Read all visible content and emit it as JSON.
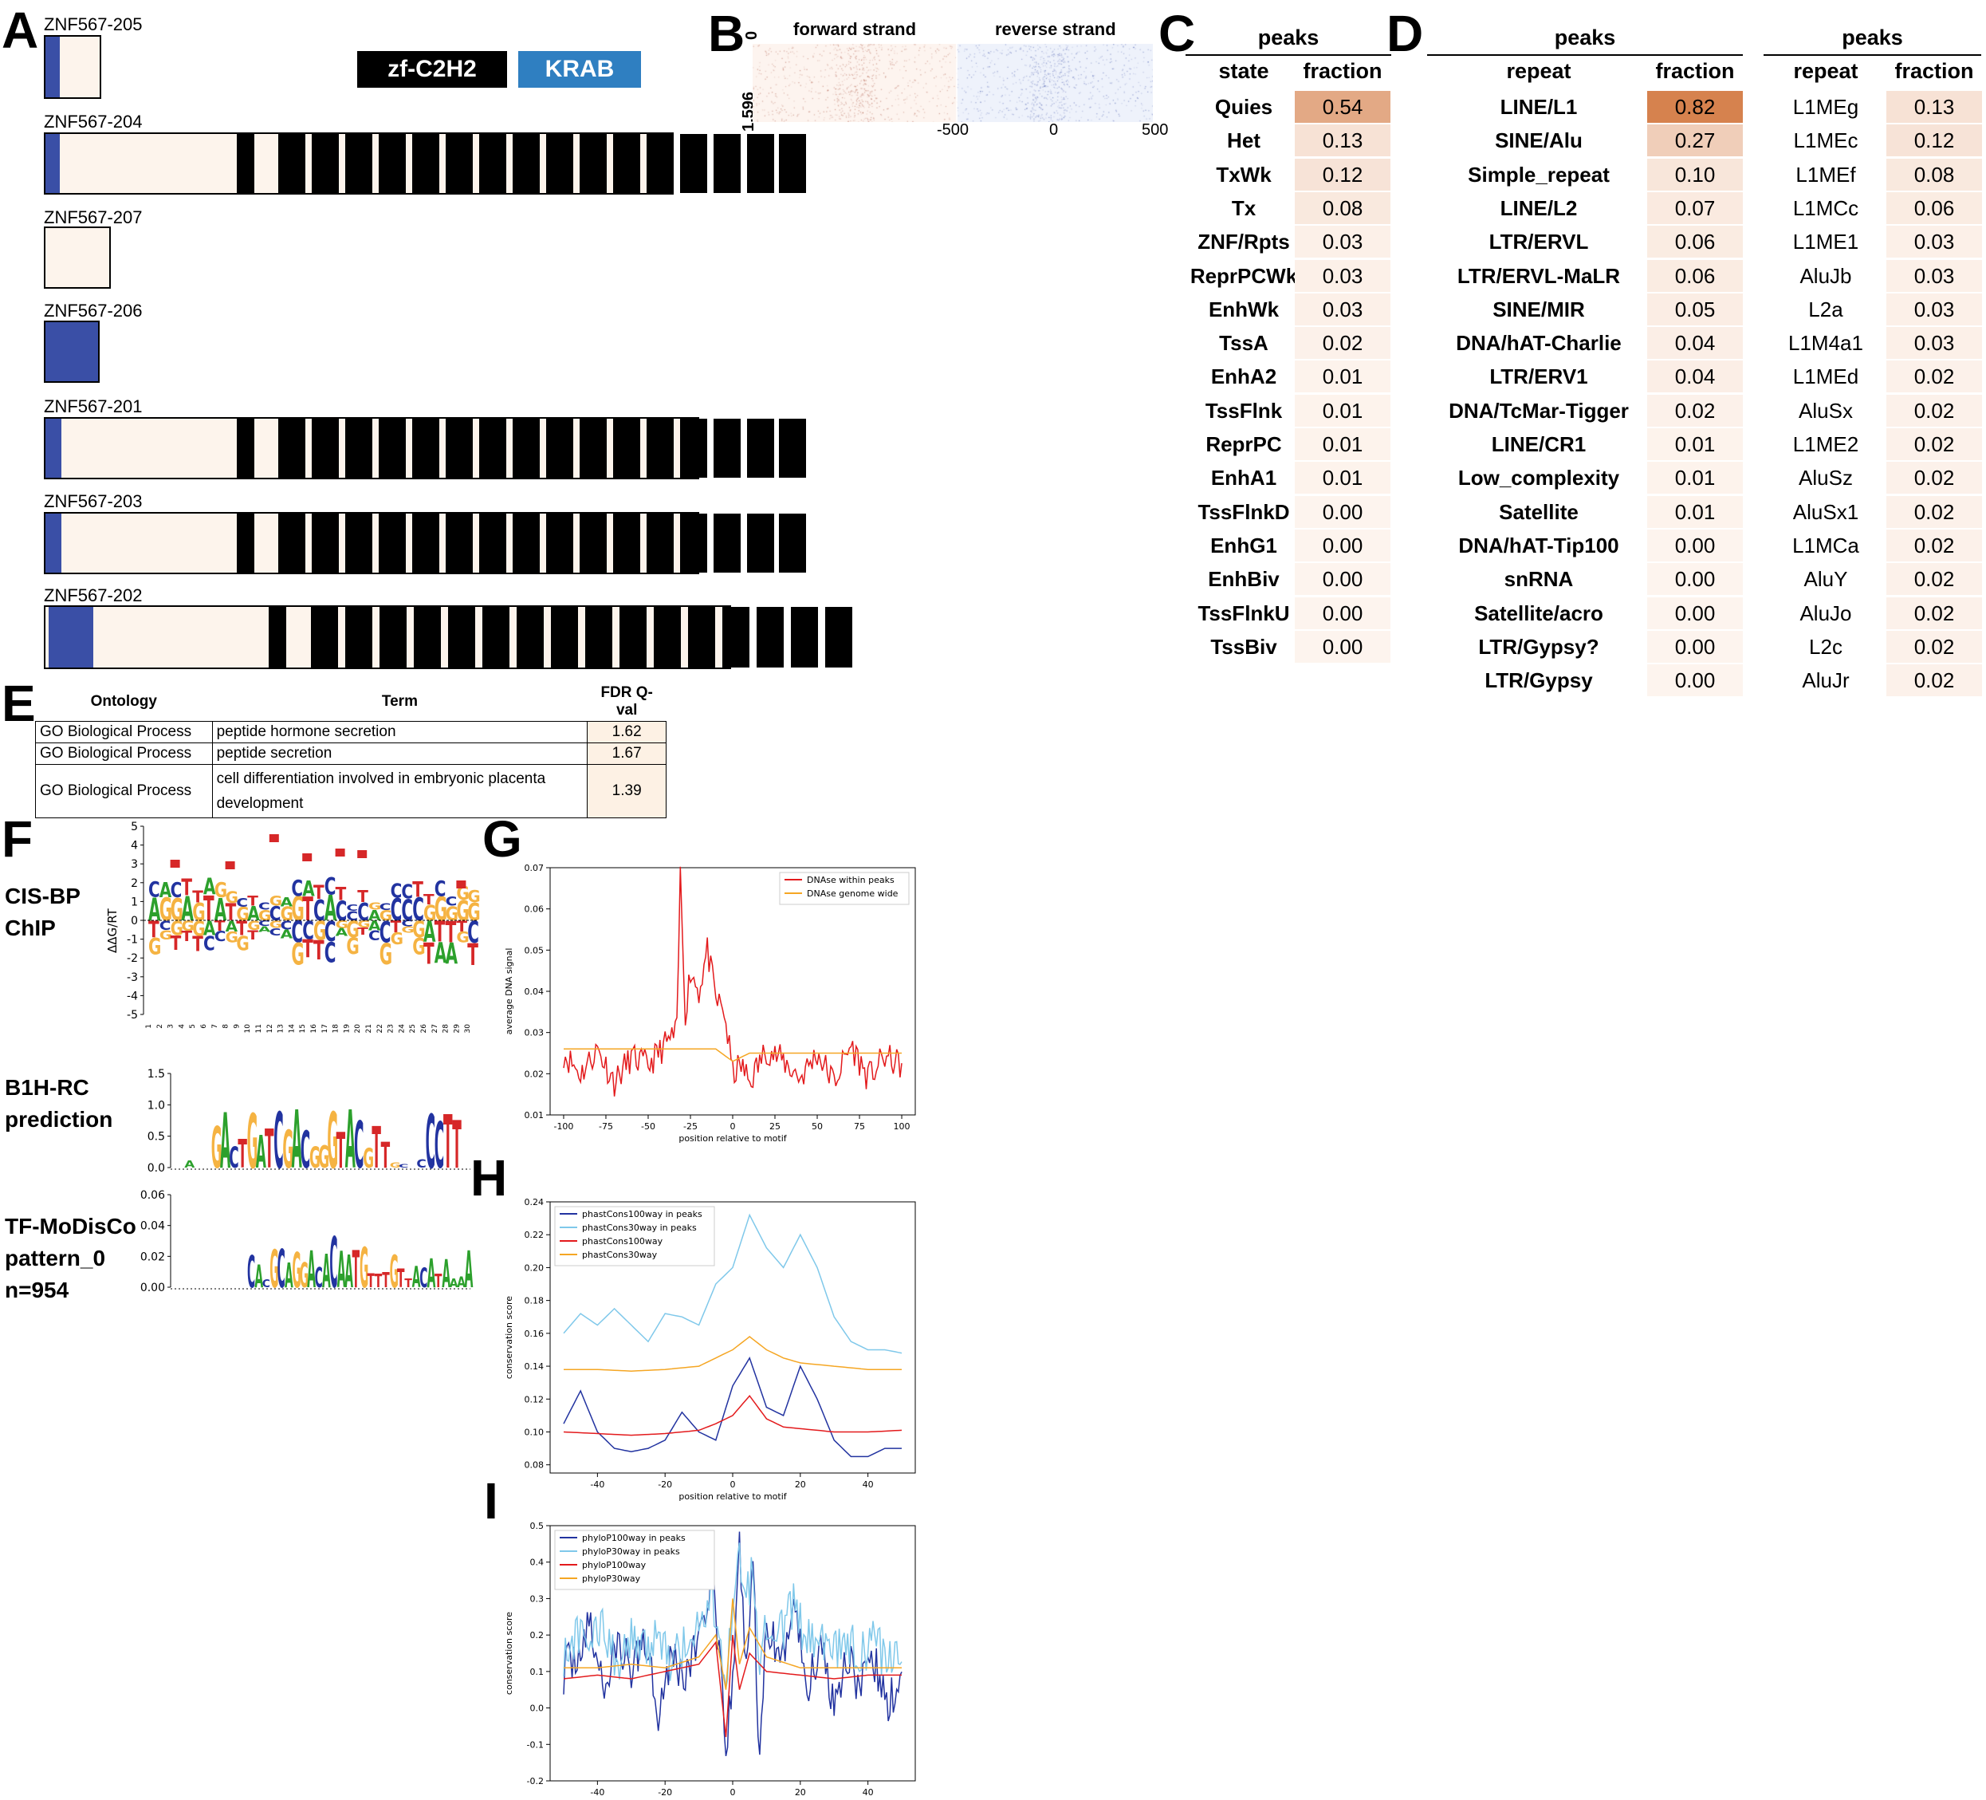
{
  "panels": {
    "A": "A",
    "B": "B",
    "C": "C",
    "D": "D",
    "E": "E",
    "F": "F",
    "G": "G",
    "H": "H",
    "I": "I"
  },
  "panelA": {
    "legend": [
      {
        "label": "zf-C2H2",
        "color": "#000000"
      },
      {
        "label": "KRAB",
        "color": "#2f7fc1"
      }
    ],
    "isoforms": [
      {
        "name": "ZNF567-205"
      },
      {
        "name": "ZNF567-204"
      },
      {
        "name": "ZNF567-207"
      },
      {
        "name": "ZNF567-206"
      },
      {
        "name": "ZNF567-201"
      },
      {
        "name": "ZNF567-203"
      },
      {
        "name": "ZNF567-202"
      }
    ]
  },
  "panelB": {
    "forward_label": "forward strand",
    "reverse_label": "reverse strand",
    "y_top": "0",
    "y_bottom": "1,596",
    "ticks": [
      "-500",
      "0",
      "500"
    ]
  },
  "panelC": {
    "group_header": "peaks",
    "col1": "state",
    "col2": "fraction",
    "rows": [
      {
        "state": "Quies",
        "fraction": "0.54"
      },
      {
        "state": "Het",
        "fraction": "0.13"
      },
      {
        "state": "TxWk",
        "fraction": "0.12"
      },
      {
        "state": "Tx",
        "fraction": "0.08"
      },
      {
        "state": "ZNF/Rpts",
        "fraction": "0.03"
      },
      {
        "state": "ReprPCWk",
        "fraction": "0.03"
      },
      {
        "state": "EnhWk",
        "fraction": "0.03"
      },
      {
        "state": "TssA",
        "fraction": "0.02"
      },
      {
        "state": "EnhA2",
        "fraction": "0.01"
      },
      {
        "state": "TssFlnk",
        "fraction": "0.01"
      },
      {
        "state": "ReprPC",
        "fraction": "0.01"
      },
      {
        "state": "EnhA1",
        "fraction": "0.01"
      },
      {
        "state": "TssFlnkD",
        "fraction": "0.00"
      },
      {
        "state": "EnhG1",
        "fraction": "0.00"
      },
      {
        "state": "EnhBiv",
        "fraction": "0.00"
      },
      {
        "state": "TssFlnkU",
        "fraction": "0.00"
      },
      {
        "state": "TssBiv",
        "fraction": "0.00"
      }
    ]
  },
  "panelD": {
    "left": {
      "group_header": "peaks",
      "col1": "repeat",
      "col2": "fraction",
      "rows": [
        {
          "repeat": "LINE/L1",
          "fraction": "0.82"
        },
        {
          "repeat": "SINE/Alu",
          "fraction": "0.27"
        },
        {
          "repeat": "Simple_repeat",
          "fraction": "0.10"
        },
        {
          "repeat": "LINE/L2",
          "fraction": "0.07"
        },
        {
          "repeat": "LTR/ERVL",
          "fraction": "0.06"
        },
        {
          "repeat": "LTR/ERVL-MaLR",
          "fraction": "0.06"
        },
        {
          "repeat": "SINE/MIR",
          "fraction": "0.05"
        },
        {
          "repeat": "DNA/hAT-Charlie",
          "fraction": "0.04"
        },
        {
          "repeat": "LTR/ERV1",
          "fraction": "0.04"
        },
        {
          "repeat": "DNA/TcMar-Tigger",
          "fraction": "0.02"
        },
        {
          "repeat": "LINE/CR1",
          "fraction": "0.01"
        },
        {
          "repeat": "Low_complexity",
          "fraction": "0.01"
        },
        {
          "repeat": "Satellite",
          "fraction": "0.01"
        },
        {
          "repeat": "DNA/hAT-Tip100",
          "fraction": "0.00"
        },
        {
          "repeat": "snRNA",
          "fraction": "0.00"
        },
        {
          "repeat": "Satellite/acro",
          "fraction": "0.00"
        },
        {
          "repeat": "LTR/Gypsy?",
          "fraction": "0.00"
        },
        {
          "repeat": "LTR/Gypsy",
          "fraction": "0.00"
        }
      ]
    },
    "right": {
      "group_header": "peaks",
      "col1": "repeat",
      "col2": "fraction",
      "rows": [
        {
          "repeat": "L1MEg",
          "fraction": "0.13"
        },
        {
          "repeat": "L1MEc",
          "fraction": "0.12"
        },
        {
          "repeat": "L1MEf",
          "fraction": "0.08"
        },
        {
          "repeat": "L1MCc",
          "fraction": "0.06"
        },
        {
          "repeat": "L1ME1",
          "fraction": "0.03"
        },
        {
          "repeat": "AluJb",
          "fraction": "0.03"
        },
        {
          "repeat": "L2a",
          "fraction": "0.03"
        },
        {
          "repeat": "L1M4a1",
          "fraction": "0.03"
        },
        {
          "repeat": "L1MEd",
          "fraction": "0.02"
        },
        {
          "repeat": "AluSx",
          "fraction": "0.02"
        },
        {
          "repeat": "L1ME2",
          "fraction": "0.02"
        },
        {
          "repeat": "AluSz",
          "fraction": "0.02"
        },
        {
          "repeat": "AluSx1",
          "fraction": "0.02"
        },
        {
          "repeat": "L1MCa",
          "fraction": "0.02"
        },
        {
          "repeat": "AluY",
          "fraction": "0.02"
        },
        {
          "repeat": "AluJo",
          "fraction": "0.02"
        },
        {
          "repeat": "L2c",
          "fraction": "0.02"
        },
        {
          "repeat": "AluJr",
          "fraction": "0.02"
        }
      ]
    }
  },
  "panelE": {
    "headers": [
      "Ontology",
      "Term",
      "FDR Q-val"
    ],
    "rows": [
      {
        "ontology": "GO Biological Process",
        "term": "peptide hormone secretion",
        "q": "1.62"
      },
      {
        "ontology": "GO Biological Process",
        "term": "peptide secretion",
        "q": "1.67"
      },
      {
        "ontology": "GO Biological Process",
        "term": "cell differentiation involved in embryonic placenta development",
        "q": "1.39"
      }
    ]
  },
  "panelF": {
    "labels": [
      {
        "line1": "CIS-BP",
        "line2": "ChIP",
        "line3": ""
      },
      {
        "line1": "B1H-RC",
        "line2": "prediction",
        "line3": ""
      },
      {
        "line1": "TF-MoDisCo",
        "line2": "pattern_0",
        "line3": "n=954"
      }
    ],
    "cisbp_ylabel": "ΔΔG/RT",
    "cisbp_yticks": [
      "5",
      "4",
      "3",
      "2",
      "1",
      "0",
      "-1",
      "-2",
      "-3",
      "-4",
      "-5"
    ],
    "b1h_yticks": [
      "1.5",
      "1.0",
      "0.5",
      "0.0"
    ],
    "modisco_yticks": [
      "0.06",
      "0.04",
      "0.02",
      "0.00"
    ]
  },
  "chart_data": [
    {
      "type": "line",
      "panel": "G",
      "xlabel": "position relative to motif",
      "ylabel": "average DNA signal",
      "xlim": [
        -100,
        100
      ],
      "ylim": [
        0.01,
        0.07
      ],
      "xticks": [
        -100,
        -75,
        -50,
        -25,
        0,
        25,
        50,
        75,
        100
      ],
      "yticks": [
        0.01,
        0.02,
        0.03,
        0.04,
        0.05,
        0.06,
        0.07
      ],
      "legend_position": "top-right",
      "series": [
        {
          "name": "DNAse within peaks",
          "color": "#e31a1c",
          "x": [
            -100,
            -90,
            -80,
            -70,
            -60,
            -50,
            -40,
            -33,
            -31,
            -28,
            -25,
            -20,
            -15,
            -10,
            -5,
            0,
            5,
            10,
            20,
            30,
            40,
            50,
            60,
            70,
            80,
            90,
            100
          ],
          "values": [
            0.025,
            0.02,
            0.026,
            0.018,
            0.024,
            0.022,
            0.027,
            0.03,
            0.068,
            0.035,
            0.045,
            0.04,
            0.05,
            0.038,
            0.035,
            0.02,
            0.022,
            0.018,
            0.026,
            0.023,
            0.019,
            0.025,
            0.018,
            0.027,
            0.019,
            0.024,
            0.022
          ]
        },
        {
          "name": "DNAse genome wide",
          "color": "#f5a623",
          "x": [
            -100,
            -75,
            -50,
            -25,
            -10,
            0,
            10,
            25,
            50,
            75,
            100
          ],
          "values": [
            0.026,
            0.026,
            0.026,
            0.026,
            0.026,
            0.023,
            0.025,
            0.025,
            0.025,
            0.025,
            0.025
          ]
        }
      ]
    },
    {
      "type": "line",
      "panel": "H",
      "xlabel": "position relative to motif",
      "ylabel": "conservation score",
      "xlim": [
        -50,
        50
      ],
      "ylim": [
        0.075,
        0.24
      ],
      "xticks": [
        -40,
        -20,
        0,
        20,
        40
      ],
      "yticks": [
        0.08,
        0.1,
        0.12,
        0.14,
        0.16,
        0.18,
        0.2,
        0.22,
        0.24
      ],
      "legend_position": "top-left",
      "series": [
        {
          "name": "phastCons100way in peaks",
          "color": "#2233a0",
          "x": [
            -50,
            -45,
            -40,
            -35,
            -30,
            -25,
            -20,
            -15,
            -10,
            -5,
            0,
            5,
            10,
            15,
            20,
            25,
            30,
            35,
            40,
            45,
            50
          ],
          "values": [
            0.105,
            0.125,
            0.1,
            0.09,
            0.088,
            0.09,
            0.095,
            0.112,
            0.1,
            0.095,
            0.128,
            0.145,
            0.115,
            0.11,
            0.14,
            0.12,
            0.095,
            0.085,
            0.085,
            0.09,
            0.09
          ]
        },
        {
          "name": "phastCons30way in peaks",
          "color": "#7fc8ea",
          "x": [
            -50,
            -45,
            -40,
            -35,
            -30,
            -25,
            -20,
            -15,
            -10,
            -5,
            0,
            5,
            10,
            15,
            20,
            25,
            30,
            35,
            40,
            45,
            50
          ],
          "values": [
            0.16,
            0.172,
            0.165,
            0.175,
            0.165,
            0.155,
            0.172,
            0.17,
            0.165,
            0.19,
            0.2,
            0.232,
            0.212,
            0.2,
            0.22,
            0.2,
            0.17,
            0.155,
            0.15,
            0.15,
            0.148
          ]
        },
        {
          "name": "phastCons100way",
          "color": "#e31a1c",
          "x": [
            -50,
            -40,
            -30,
            -20,
            -10,
            -5,
            0,
            5,
            10,
            15,
            20,
            30,
            40,
            50
          ],
          "values": [
            0.1,
            0.099,
            0.098,
            0.099,
            0.101,
            0.105,
            0.11,
            0.122,
            0.108,
            0.103,
            0.102,
            0.1,
            0.1,
            0.101
          ]
        },
        {
          "name": "phastCons30way",
          "color": "#f5a623",
          "x": [
            -50,
            -40,
            -30,
            -20,
            -10,
            -5,
            0,
            5,
            10,
            15,
            20,
            30,
            40,
            50
          ],
          "values": [
            0.138,
            0.138,
            0.137,
            0.138,
            0.14,
            0.145,
            0.15,
            0.158,
            0.15,
            0.145,
            0.142,
            0.14,
            0.138,
            0.138
          ]
        }
      ]
    },
    {
      "type": "line",
      "panel": "I",
      "xlabel": "position relative to motif",
      "ylabel": "conservation score",
      "xlim": [
        -50,
        50
      ],
      "ylim": [
        -0.2,
        0.5
      ],
      "xticks": [
        -40,
        -20,
        0,
        20,
        40
      ],
      "yticks": [
        -0.2,
        -0.1,
        0.0,
        0.1,
        0.2,
        0.3,
        0.4,
        0.5
      ],
      "legend_position": "top-left",
      "series": [
        {
          "name": "phyloP100way in peaks",
          "color": "#2233a0",
          "x": [
            -50,
            -46,
            -42,
            -38,
            -34,
            -30,
            -26,
            -22,
            -18,
            -14,
            -10,
            -6,
            -2,
            0,
            2,
            4,
            6,
            8,
            10,
            14,
            18,
            22,
            26,
            30,
            34,
            38,
            42,
            46,
            50
          ],
          "values": [
            0.1,
            0.15,
            0.22,
            0.05,
            0.18,
            0.1,
            0.2,
            0.0,
            0.15,
            0.08,
            0.2,
            0.35,
            -0.1,
            0.05,
            0.46,
            0.1,
            0.4,
            -0.18,
            0.25,
            0.1,
            0.3,
            0.05,
            0.18,
            0.02,
            0.15,
            0.05,
            0.12,
            0.0,
            0.1
          ]
        },
        {
          "name": "phyloP30way in peaks",
          "color": "#7fc8ea",
          "x": [
            -50,
            -46,
            -42,
            -38,
            -34,
            -30,
            -26,
            -22,
            -18,
            -14,
            -10,
            -6,
            -2,
            0,
            2,
            4,
            6,
            8,
            10,
            14,
            18,
            22,
            26,
            30,
            34,
            38,
            42,
            46,
            50
          ],
          "values": [
            0.15,
            0.2,
            0.18,
            0.22,
            0.12,
            0.2,
            0.15,
            0.22,
            0.12,
            0.18,
            0.22,
            0.3,
            0.1,
            0.25,
            0.42,
            0.3,
            0.38,
            0.15,
            0.25,
            0.2,
            0.28,
            0.18,
            0.2,
            0.15,
            0.18,
            0.15,
            0.18,
            0.12,
            0.15
          ]
        },
        {
          "name": "phyloP100way",
          "color": "#e31a1c",
          "x": [
            -50,
            -40,
            -30,
            -20,
            -10,
            -5,
            -2,
            0,
            2,
            5,
            10,
            20,
            30,
            40,
            50
          ],
          "values": [
            0.08,
            0.09,
            0.08,
            0.1,
            0.12,
            0.18,
            -0.08,
            0.2,
            0.05,
            0.15,
            0.1,
            0.09,
            0.08,
            0.09,
            0.09
          ]
        },
        {
          "name": "phyloP30way",
          "color": "#f5a623",
          "x": [
            -50,
            -40,
            -30,
            -20,
            -10,
            -5,
            -2,
            0,
            2,
            5,
            10,
            20,
            30,
            40,
            50
          ],
          "values": [
            0.11,
            0.11,
            0.12,
            0.11,
            0.14,
            0.2,
            0.05,
            0.3,
            0.12,
            0.22,
            0.14,
            0.11,
            0.11,
            0.11,
            0.11
          ]
        }
      ]
    }
  ]
}
